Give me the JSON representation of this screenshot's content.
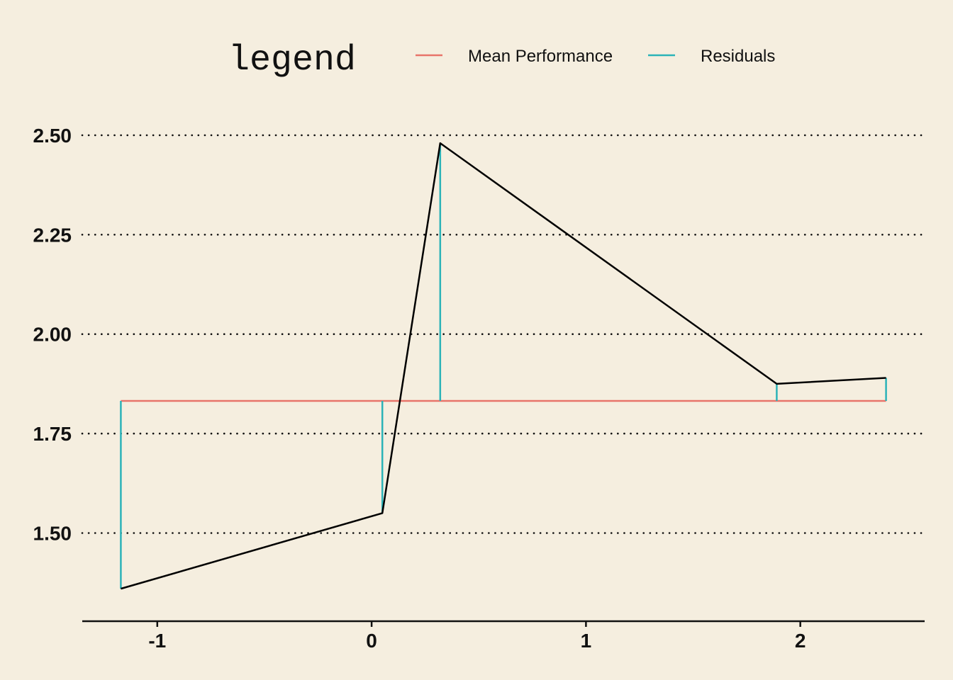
{
  "legend": {
    "title": "legend",
    "items": [
      {
        "label": "Mean Performance",
        "color": "#E8746A"
      },
      {
        "label": "Residuals",
        "color": "#2BB3B8"
      }
    ]
  },
  "chart_data": {
    "type": "line",
    "title": "",
    "xlabel": "",
    "ylabel": "",
    "xlim": [
      -1.35,
      2.58
    ],
    "ylim": [
      1.305,
      2.555
    ],
    "x_ticks": [
      -1,
      0,
      1,
      2
    ],
    "x_tick_labels": [
      "-1",
      "0",
      "1",
      "2"
    ],
    "y_ticks": [
      1.5,
      1.75,
      2.0,
      2.25,
      2.5
    ],
    "y_tick_labels": [
      "1.50",
      "1.75",
      "2.00",
      "2.25",
      "2.50"
    ],
    "grid": "horizontal dotted",
    "legend_position": "top",
    "series": [
      {
        "type": "line",
        "color": "#000000",
        "x": [
          -1.17,
          0.05,
          0.32,
          1.89,
          2.4
        ],
        "y": [
          1.36,
          1.55,
          2.48,
          1.875,
          1.89
        ]
      },
      {
        "name": "Mean Performance",
        "type": "hline",
        "color": "#E8746A",
        "x": [
          -1.17,
          2.4
        ],
        "y": 1.832
      },
      {
        "name": "Residuals",
        "type": "segments",
        "color": "#2BB3B8",
        "x": [
          -1.17,
          0.05,
          0.32,
          1.89,
          2.4
        ],
        "from": [
          1.832,
          1.832,
          1.832,
          1.832,
          1.832
        ],
        "to": [
          1.36,
          1.55,
          2.48,
          1.875,
          1.89
        ]
      }
    ]
  }
}
